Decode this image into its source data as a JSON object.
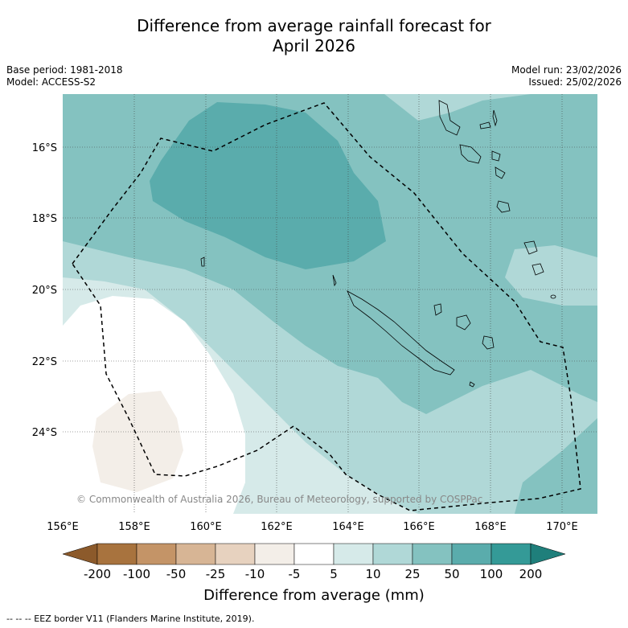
{
  "header": {
    "title_line1": "Difference from average rainfall forecast for",
    "title_line2": "April 2026",
    "base_period": "Base period: 1981-2018",
    "model": "Model: ACCESS-S2",
    "model_run": "Model run: 23/02/2026",
    "issued": "Issued: 25/02/2026"
  },
  "map": {
    "lat_labels": [
      "16°S",
      "18°S",
      "20°S",
      "22°S",
      "24°S"
    ],
    "lon_labels": [
      "156°E",
      "158°E",
      "160°E",
      "162°E",
      "164°E",
      "166°E",
      "168°E",
      "170°E"
    ],
    "copyright": "© Commonwealth of Australia 2026, Bureau of Meteorology, supported by COSPPac"
  },
  "colorbar": {
    "ticks": [
      "-200",
      "-100",
      "-50",
      "-25",
      "-10",
      "-5",
      "5",
      "10",
      "25",
      "50",
      "100",
      "200"
    ],
    "title": "Difference from average (mm)",
    "colors": [
      "#8c5a2b",
      "#a8733e",
      "#c49467",
      "#d7b595",
      "#e7d2bf",
      "#f3eee8",
      "#ffffff",
      "#d6eae9",
      "#b0d8d7",
      "#84c2c0",
      "#5aacac",
      "#349a97",
      "#1f7f7b"
    ]
  },
  "footnote": "--  --  -- EEZ border V11 (Flanders Marine Institute, 2019)."
}
